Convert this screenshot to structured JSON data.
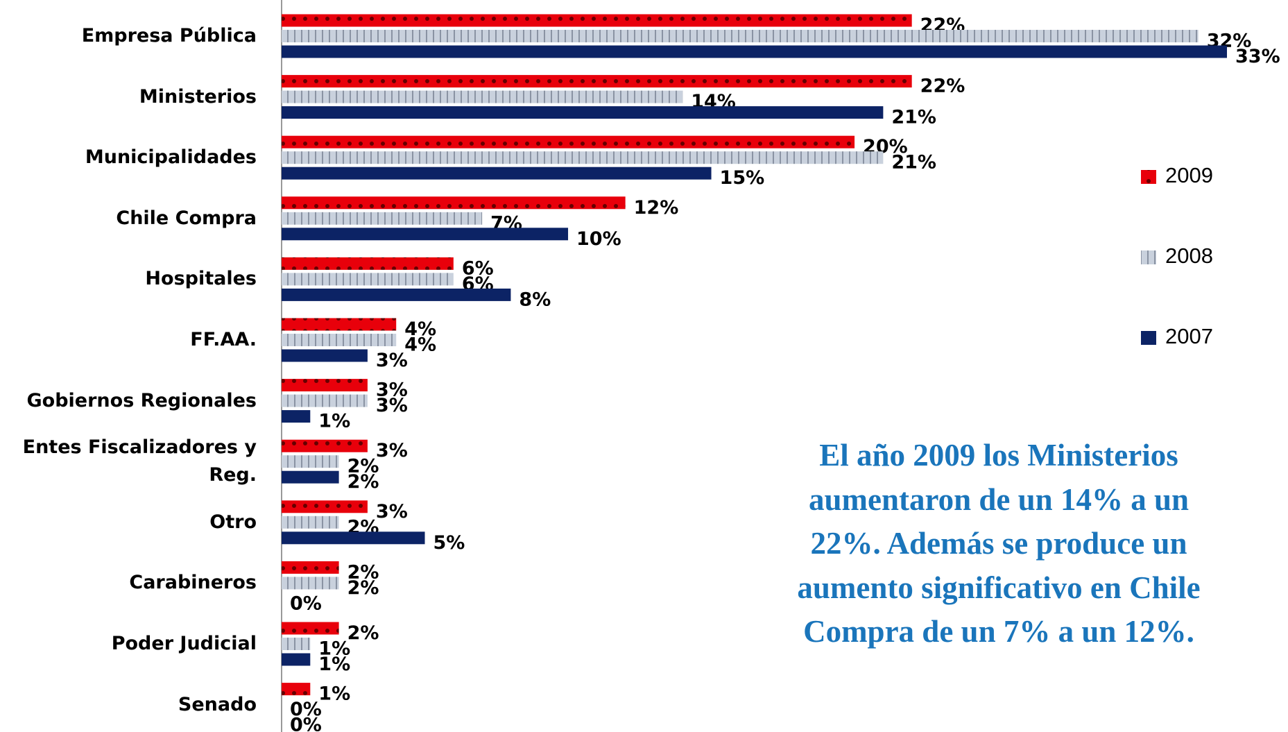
{
  "chart_data": {
    "type": "bar",
    "orientation": "horizontal",
    "categories": [
      "Empresa Pública",
      "Ministerios",
      "Municipalidades",
      "Chile Compra",
      "Hospitales",
      "FF.AA.",
      "Gobiernos Regionales",
      "Entes Fiscalizadores y Reg.",
      "Otro",
      "Carabineros",
      "Poder Judicial",
      "Senado"
    ],
    "series": [
      {
        "name": "2009",
        "color": "#e8000b",
        "values": [
          22,
          22,
          20,
          12,
          6,
          4,
          3,
          3,
          3,
          2,
          2,
          1
        ],
        "value_labels": [
          "22%",
          "22%",
          "20%",
          "12%",
          "6%",
          "4%",
          "3%",
          "3%",
          "3%",
          "2%",
          "2%",
          "1%"
        ]
      },
      {
        "name": "2008",
        "color": "#c9d1dd",
        "values": [
          32,
          14,
          21,
          7,
          6,
          4,
          3,
          2,
          2,
          2,
          1,
          0
        ],
        "value_labels": [
          "32%",
          "14%",
          "21%",
          "7%",
          "6%",
          "4%",
          "3%",
          "2%",
          "2%",
          "2%",
          "1%",
          "0%"
        ]
      },
      {
        "name": "2007",
        "color": "#0c2365",
        "values": [
          33,
          21,
          15,
          10,
          8,
          3,
          1,
          2,
          5,
          0,
          1,
          0
        ],
        "value_labels": [
          "33%",
          "21%",
          "15%",
          "10%",
          "8%",
          "3%",
          "1%",
          "2%",
          "5%",
          "0%",
          "1%",
          "0%"
        ]
      }
    ],
    "xlim": [
      0,
      33
    ],
    "legend": "right",
    "annotation": [
      "El año 2009 los Ministerios",
      "aumentaron de un 14% a un",
      "22%. Además se produce un",
      "aumento significativo en Chile",
      "Compra de un 7% a un 12%."
    ]
  }
}
